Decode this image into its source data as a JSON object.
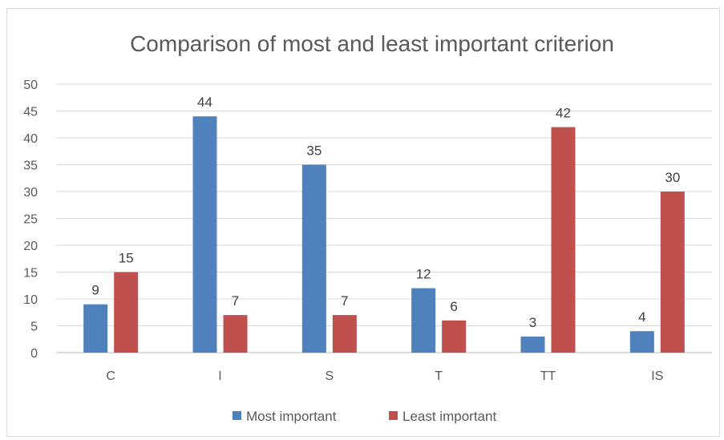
{
  "chart_data": {
    "type": "bar",
    "title": "Comparison of most and least important criterion",
    "categories": [
      "C",
      "I",
      "S",
      "T",
      "TT",
      "IS"
    ],
    "series": [
      {
        "name": "Most important",
        "values": [
          9,
          44,
          35,
          12,
          3,
          4
        ],
        "color": "#4f81bd"
      },
      {
        "name": "Least important",
        "values": [
          15,
          7,
          7,
          6,
          42,
          30
        ],
        "color": "#c0504d"
      }
    ],
    "ylim": [
      0,
      50
    ],
    "yticks": [
      0,
      5,
      10,
      15,
      20,
      25,
      30,
      35,
      40,
      45,
      50
    ],
    "grid": true,
    "legend_position": "bottom",
    "data_labels": true
  }
}
